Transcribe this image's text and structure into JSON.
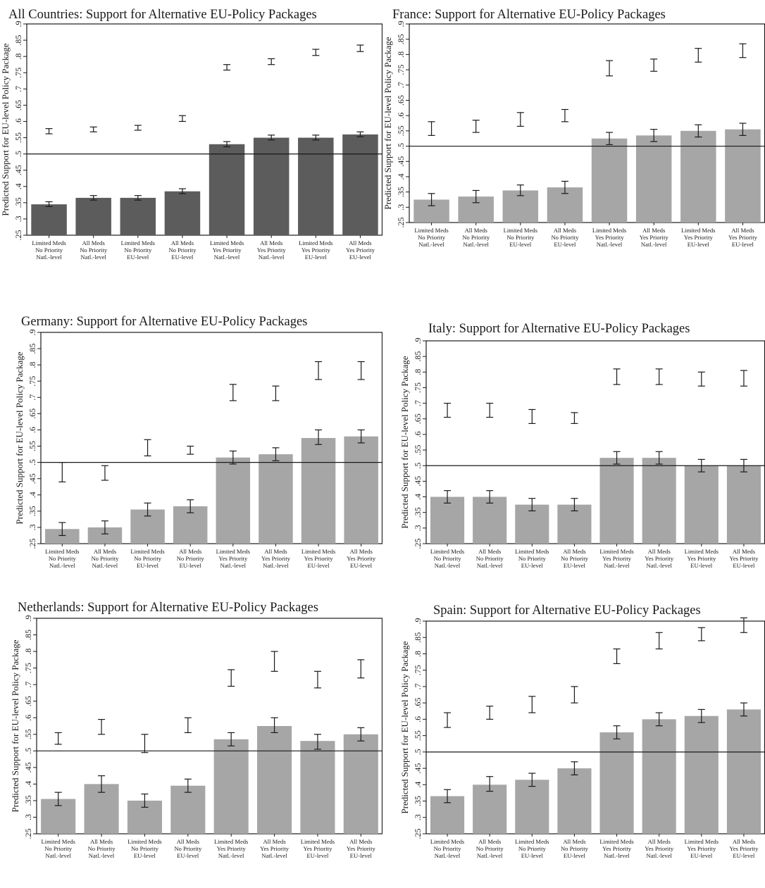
{
  "shared": {
    "ylabel": "Predicted Support for EU-level Policy Package",
    "yticks": [
      ".25",
      ".3",
      ".35",
      ".4",
      ".45",
      ".5",
      ".55",
      ".6",
      ".65",
      ".7",
      ".75",
      ".8",
      ".85",
      ".9"
    ],
    "categories": [
      [
        "Limited Meds",
        "No Priority",
        "Natl.-level"
      ],
      [
        "All Meds",
        "No Priority",
        "Natl.-level"
      ],
      [
        "Limited Meds",
        "No Priority",
        "EU-level"
      ],
      [
        "All Meds",
        "No Priority",
        "EU-level"
      ],
      [
        "Limited Meds",
        "Yes Priority",
        "Natl.-level"
      ],
      [
        "All Meds",
        "Yes Priority",
        "Natl.-level"
      ],
      [
        "Limited Meds",
        "Yes Priority",
        "EU-level"
      ],
      [
        "All Meds",
        "Yes Priority",
        "EU-level"
      ]
    ]
  },
  "chart_data": [
    {
      "type": "bar",
      "title": "All Countries: Support for Alternative EU-Policy Packages",
      "ylabel": "Predicted Support for EU-level Policy Package",
      "ylim": [
        0.25,
        0.9
      ],
      "reference_line": 0.5,
      "bar_color": "#5c5c5c",
      "bars": [
        0.345,
        0.365,
        0.365,
        0.385,
        0.53,
        0.55,
        0.55,
        0.56
      ],
      "bar_ci": [
        [
          0.338,
          0.353
        ],
        [
          0.358,
          0.372
        ],
        [
          0.358,
          0.372
        ],
        [
          0.378,
          0.393
        ],
        [
          0.522,
          0.538
        ],
        [
          0.543,
          0.558
        ],
        [
          0.543,
          0.558
        ],
        [
          0.553,
          0.568
        ]
      ],
      "upper_ci": [
        [
          0.562,
          0.578
        ],
        [
          0.568,
          0.583
        ],
        [
          0.573,
          0.588
        ],
        [
          0.6,
          0.618
        ],
        [
          0.758,
          0.775
        ],
        [
          0.775,
          0.793
        ],
        [
          0.803,
          0.822
        ],
        [
          0.815,
          0.835
        ]
      ]
    },
    {
      "type": "bar",
      "title": "France: Support for Alternative EU-Policy Packages",
      "ylabel": "Predicted Support for EU-level Policy Package",
      "ylim": [
        0.25,
        0.9
      ],
      "reference_line": 0.5,
      "bar_color": "#a6a6a6",
      "bars": [
        0.325,
        0.335,
        0.355,
        0.365,
        0.525,
        0.535,
        0.55,
        0.555
      ],
      "bar_ci": [
        [
          0.305,
          0.345
        ],
        [
          0.315,
          0.355
        ],
        [
          0.338,
          0.373
        ],
        [
          0.345,
          0.385
        ],
        [
          0.505,
          0.545
        ],
        [
          0.515,
          0.555
        ],
        [
          0.53,
          0.57
        ],
        [
          0.535,
          0.575
        ]
      ],
      "upper_ci": [
        [
          0.535,
          0.58
        ],
        [
          0.545,
          0.585
        ],
        [
          0.565,
          0.61
        ],
        [
          0.58,
          0.62
        ],
        [
          0.73,
          0.78
        ],
        [
          0.745,
          0.785
        ],
        [
          0.775,
          0.82
        ],
        [
          0.79,
          0.835
        ]
      ]
    },
    {
      "type": "bar",
      "title": "Germany: Support for Alternative EU-Policy Packages",
      "ylabel": "Predicted Support for EU-level Policy Package",
      "ylim": [
        0.25,
        0.9
      ],
      "reference_line": 0.5,
      "bar_color": "#a6a6a6",
      "bars": [
        0.295,
        0.3,
        0.355,
        0.365,
        0.515,
        0.525,
        0.575,
        0.58
      ],
      "bar_ci": [
        [
          0.275,
          0.315
        ],
        [
          0.28,
          0.32
        ],
        [
          0.335,
          0.375
        ],
        [
          0.345,
          0.385
        ],
        [
          0.495,
          0.535
        ],
        [
          0.505,
          0.545
        ],
        [
          0.555,
          0.6
        ],
        [
          0.56,
          0.6
        ]
      ],
      "upper_ci": [
        [
          0.44,
          0.5
        ],
        [
          0.445,
          0.49
        ],
        [
          0.52,
          0.57
        ],
        [
          0.525,
          0.55
        ],
        [
          0.69,
          0.74
        ],
        [
          0.69,
          0.735
        ],
        [
          0.755,
          0.81
        ],
        [
          0.755,
          0.81
        ]
      ]
    },
    {
      "type": "bar",
      "title": "Italy: Support for Alternative EU-Policy Packages",
      "ylabel": "Predicted Support for EU-level Policy Package",
      "ylim": [
        0.25,
        0.9
      ],
      "reference_line": 0.5,
      "bar_color": "#a6a6a6",
      "bars": [
        0.4,
        0.4,
        0.375,
        0.375,
        0.525,
        0.525,
        0.5,
        0.5
      ],
      "bar_ci": [
        [
          0.38,
          0.42
        ],
        [
          0.38,
          0.42
        ],
        [
          0.355,
          0.395
        ],
        [
          0.355,
          0.395
        ],
        [
          0.505,
          0.545
        ],
        [
          0.505,
          0.545
        ],
        [
          0.48,
          0.52
        ],
        [
          0.48,
          0.52
        ]
      ],
      "upper_ci": [
        [
          0.655,
          0.7
        ],
        [
          0.655,
          0.7
        ],
        [
          0.635,
          0.68
        ],
        [
          0.635,
          0.67
        ],
        [
          0.76,
          0.81
        ],
        [
          0.76,
          0.81
        ],
        [
          0.755,
          0.8
        ],
        [
          0.755,
          0.805
        ]
      ]
    },
    {
      "type": "bar",
      "title": "Netherlands: Support for Alternative EU-Policy Packages",
      "ylabel": "Predicted Support for EU-level Policy Package",
      "ylim": [
        0.25,
        0.9
      ],
      "reference_line": 0.5,
      "bar_color": "#a6a6a6",
      "bars": [
        0.355,
        0.4,
        0.35,
        0.395,
        0.535,
        0.575,
        0.53,
        0.55
      ],
      "bar_ci": [
        [
          0.335,
          0.375
        ],
        [
          0.375,
          0.425
        ],
        [
          0.33,
          0.37
        ],
        [
          0.375,
          0.415
        ],
        [
          0.515,
          0.555
        ],
        [
          0.555,
          0.6
        ],
        [
          0.505,
          0.55
        ],
        [
          0.53,
          0.57
        ]
      ],
      "upper_ci": [
        [
          0.52,
          0.555
        ],
        [
          0.55,
          0.595
        ],
        [
          0.495,
          0.55
        ],
        [
          0.555,
          0.6
        ],
        [
          0.695,
          0.745
        ],
        [
          0.74,
          0.8
        ],
        [
          0.69,
          0.74
        ],
        [
          0.72,
          0.775
        ]
      ]
    },
    {
      "type": "bar",
      "title": "Spain: Support for Alternative EU-Policy Packages",
      "ylabel": "Predicted Support for EU-level Policy Package",
      "ylim": [
        0.25,
        0.9
      ],
      "reference_line": 0.5,
      "bar_color": "#a6a6a6",
      "bars": [
        0.365,
        0.4,
        0.415,
        0.45,
        0.56,
        0.6,
        0.61,
        0.63
      ],
      "bar_ci": [
        [
          0.345,
          0.385
        ],
        [
          0.38,
          0.425
        ],
        [
          0.395,
          0.435
        ],
        [
          0.43,
          0.47
        ],
        [
          0.54,
          0.58
        ],
        [
          0.58,
          0.62
        ],
        [
          0.59,
          0.63
        ],
        [
          0.61,
          0.65
        ]
      ],
      "upper_ci": [
        [
          0.575,
          0.62
        ],
        [
          0.6,
          0.64
        ],
        [
          0.62,
          0.67
        ],
        [
          0.65,
          0.7
        ],
        [
          0.77,
          0.815
        ],
        [
          0.815,
          0.865
        ],
        [
          0.84,
          0.88
        ],
        [
          0.865,
          0.91
        ]
      ]
    }
  ]
}
